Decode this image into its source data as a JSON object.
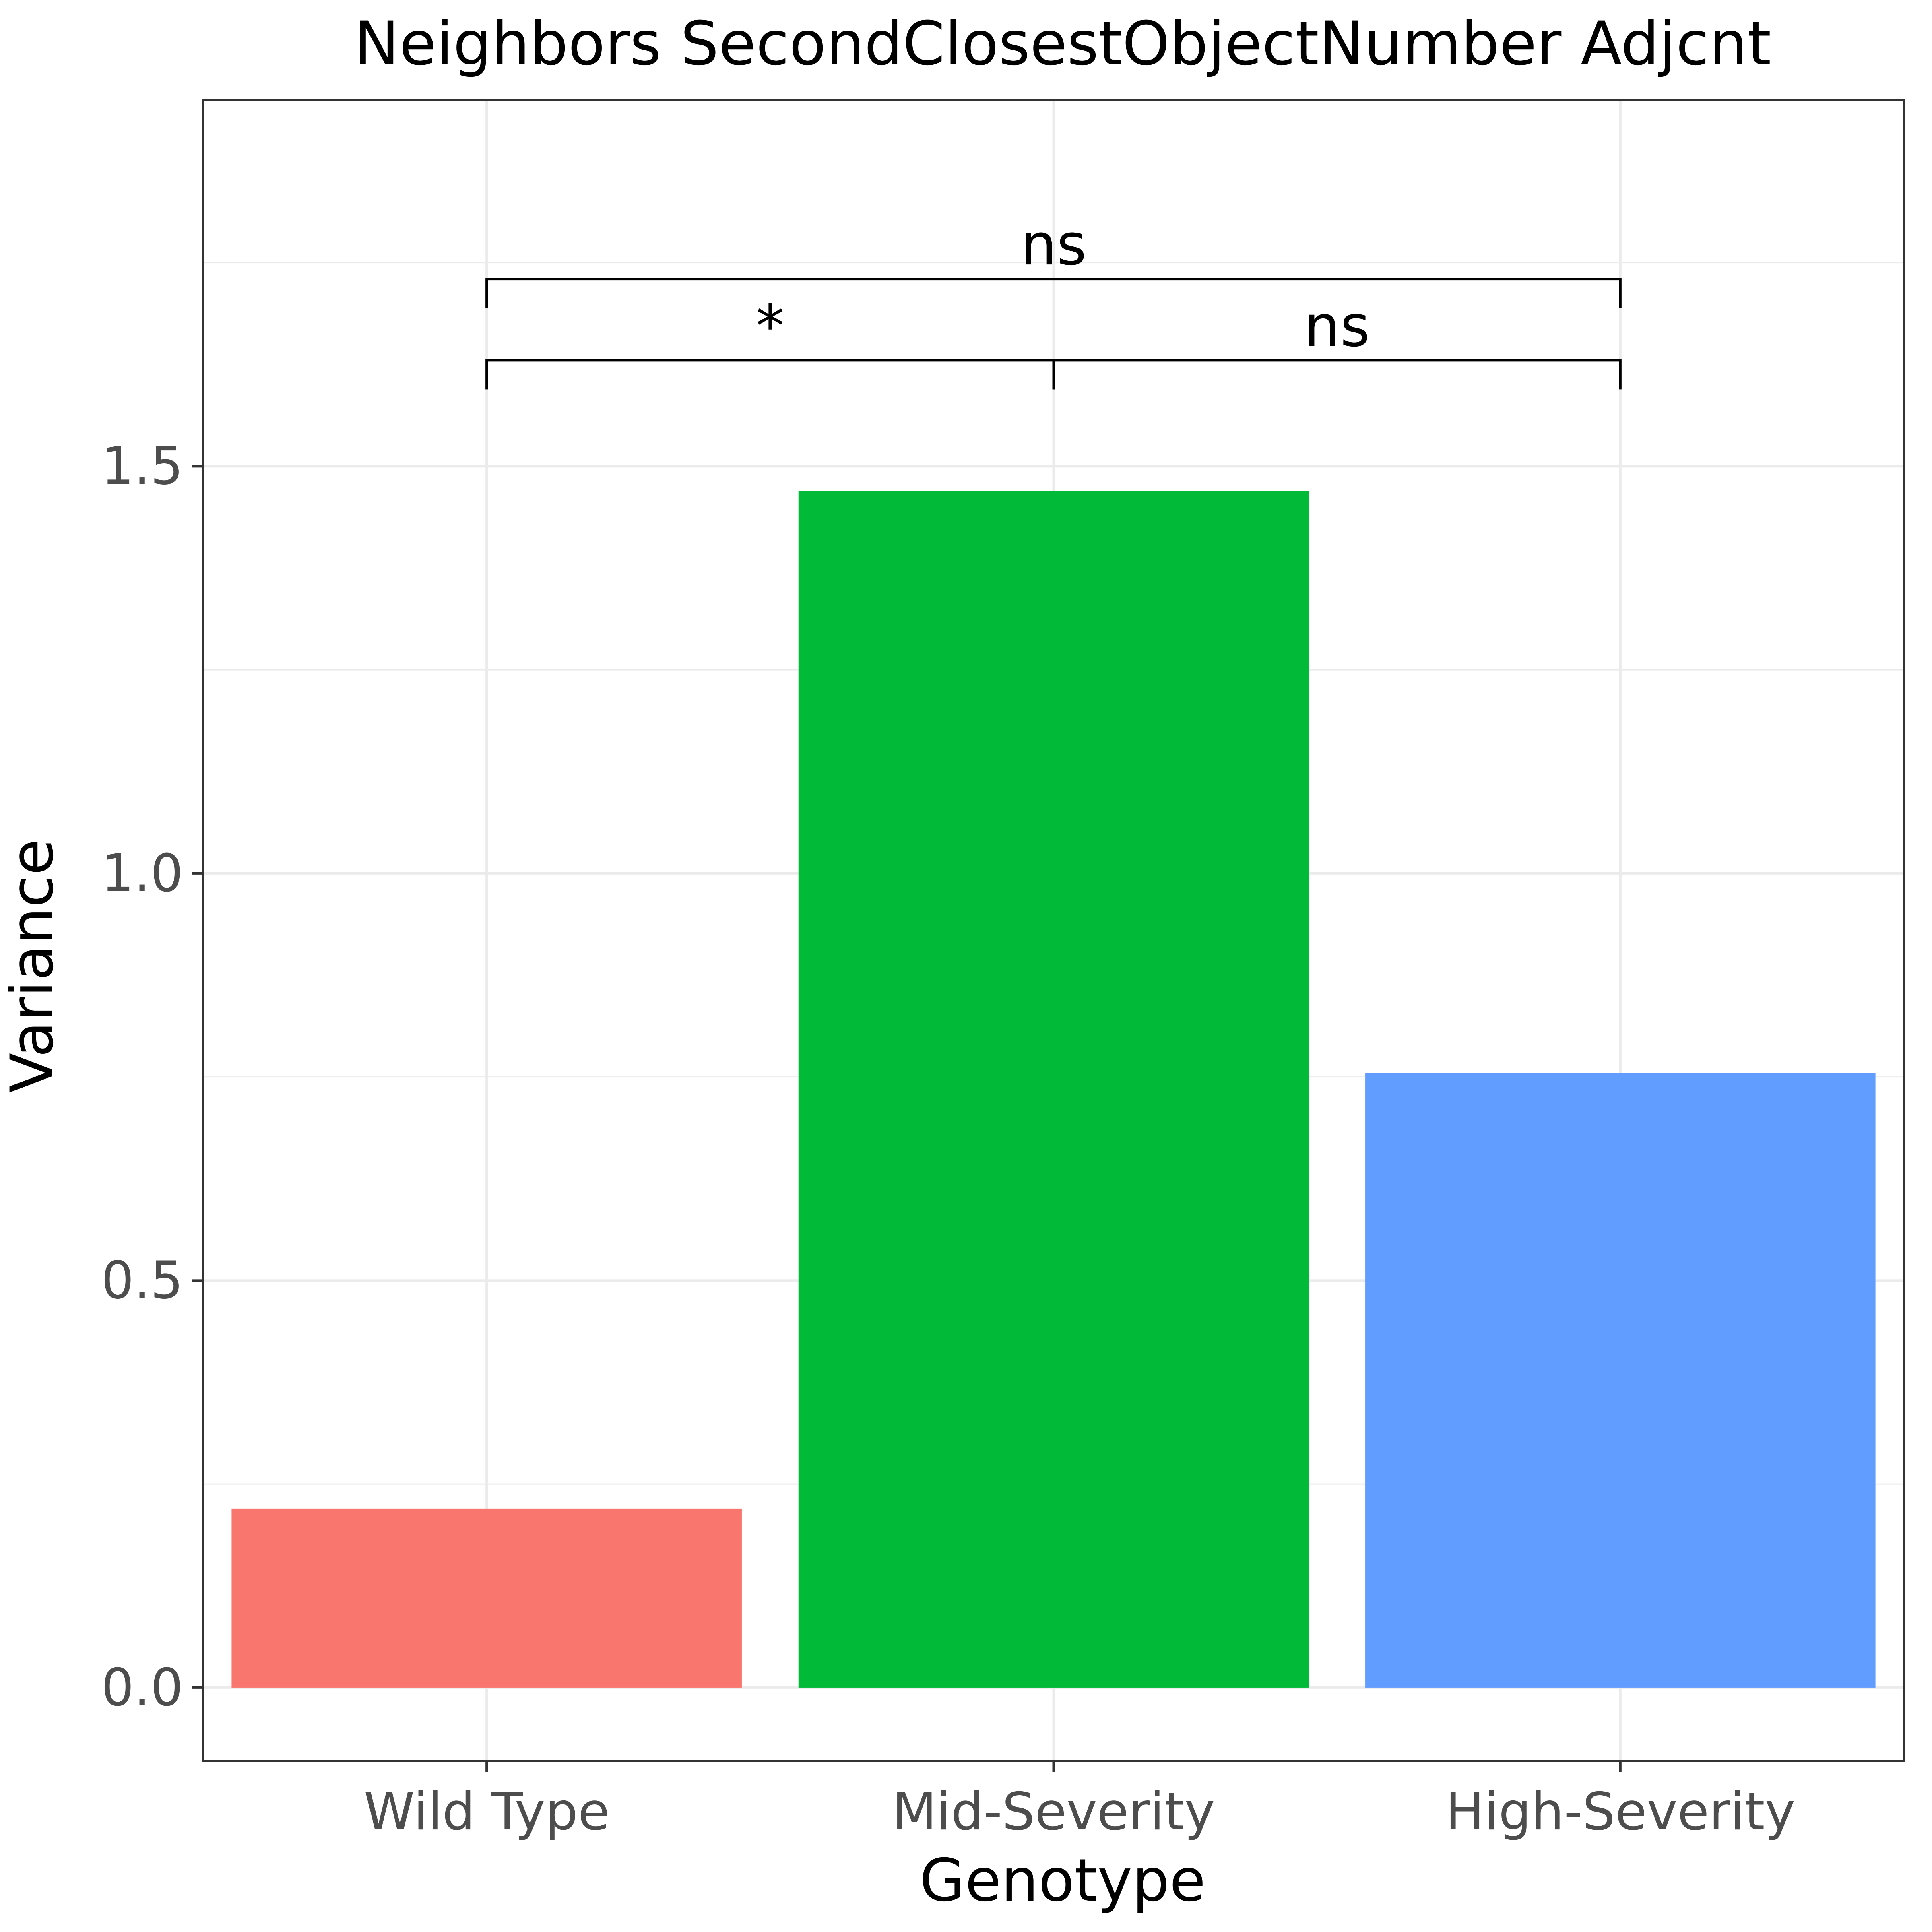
{
  "chart_data": {
    "type": "bar",
    "title": "Neighbors SecondClosestObjectNumber Adjcnt",
    "xlabel": "Genotype",
    "ylabel": "Variance",
    "categories": [
      "Wild Type",
      "Mid-Severity",
      "High-Severity"
    ],
    "values": [
      0.22,
      1.47,
      0.755
    ],
    "colors": [
      "#F8766D",
      "#00BA38",
      "#619CFF"
    ],
    "ylim": [
      -0.09,
      1.95
    ],
    "yticks": [
      0.0,
      0.5,
      1.0,
      1.5
    ],
    "ytick_labels": [
      "0.0",
      "0.5",
      "1.0",
      "1.5"
    ],
    "grid": true,
    "legend": "none",
    "comparisons": [
      {
        "from": 0,
        "to": 1,
        "label": "*",
        "y": 1.63
      },
      {
        "from": 1,
        "to": 2,
        "label": "ns",
        "y": 1.63
      },
      {
        "from": 0,
        "to": 2,
        "label": "ns",
        "y": 1.73
      }
    ]
  }
}
